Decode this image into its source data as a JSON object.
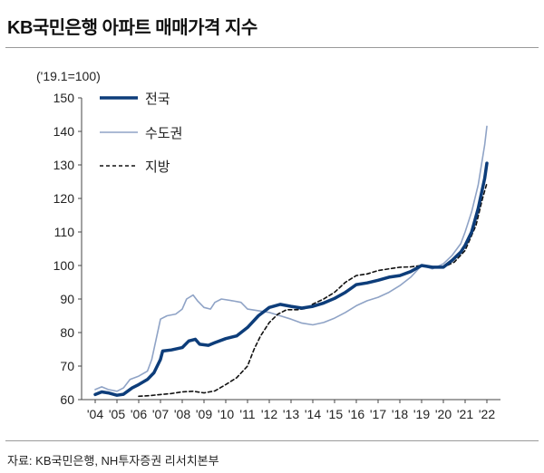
{
  "title": "KB국민은행 아파트 매매가격 지수",
  "source": "자료: KB국민은행, NH투자증권 리서치본부",
  "chart_data": {
    "type": "line",
    "title": "KB국민은행 아파트 매매가격 지수",
    "ylabel": "('19.1=100)",
    "xlabel": "",
    "ylim": [
      60,
      150
    ],
    "yticks": [
      60,
      70,
      80,
      90,
      100,
      110,
      120,
      130,
      140,
      150
    ],
    "xlim": [
      2004,
      2022
    ],
    "xtick_labels": [
      "'04",
      "'05",
      "'06",
      "'07",
      "'08",
      "'09",
      "'10",
      "'11",
      "'12",
      "'13",
      "'14",
      "'15",
      "'16",
      "'17",
      "'18",
      "'19",
      "'20",
      "'21",
      "'22"
    ],
    "grid": false,
    "legend": "top-left",
    "series": [
      {
        "name": "전국",
        "color": "#0d3d7a",
        "style": "solid-thick",
        "points": [
          [
            2004.0,
            61.5
          ],
          [
            2004.3,
            62.3
          ],
          [
            2004.6,
            62.0
          ],
          [
            2005.0,
            61.3
          ],
          [
            2005.3,
            61.6
          ],
          [
            2005.7,
            63.5
          ],
          [
            2006.0,
            64.5
          ],
          [
            2006.4,
            66.0
          ],
          [
            2006.7,
            68.0
          ],
          [
            2007.0,
            72.0
          ],
          [
            2007.1,
            74.5
          ],
          [
            2007.5,
            74.8
          ],
          [
            2008.0,
            75.5
          ],
          [
            2008.3,
            77.5
          ],
          [
            2008.6,
            78.0
          ],
          [
            2008.8,
            76.5
          ],
          [
            2009.2,
            76.2
          ],
          [
            2009.5,
            77.0
          ],
          [
            2010.0,
            78.2
          ],
          [
            2010.5,
            79.0
          ],
          [
            2011.0,
            81.5
          ],
          [
            2011.5,
            85.0
          ],
          [
            2012.0,
            87.5
          ],
          [
            2012.5,
            88.4
          ],
          [
            2013.0,
            87.8
          ],
          [
            2013.5,
            87.3
          ],
          [
            2014.0,
            87.8
          ],
          [
            2014.5,
            88.8
          ],
          [
            2015.0,
            90.2
          ],
          [
            2015.5,
            92.0
          ],
          [
            2016.0,
            94.3
          ],
          [
            2016.5,
            94.8
          ],
          [
            2017.0,
            95.6
          ],
          [
            2017.5,
            96.5
          ],
          [
            2018.0,
            97.0
          ],
          [
            2018.5,
            98.2
          ],
          [
            2019.0,
            100.0
          ],
          [
            2019.5,
            99.5
          ],
          [
            2020.0,
            99.5
          ],
          [
            2020.4,
            101.5
          ],
          [
            2020.8,
            104.0
          ],
          [
            2021.0,
            106.0
          ],
          [
            2021.3,
            110.0
          ],
          [
            2021.6,
            117.0
          ],
          [
            2021.9,
            126.0
          ],
          [
            2022.0,
            130.5
          ]
        ]
      },
      {
        "name": "수도권",
        "color": "#8fa3c6",
        "style": "solid-thin",
        "points": [
          [
            2004.0,
            63.0
          ],
          [
            2004.3,
            63.8
          ],
          [
            2004.6,
            63.0
          ],
          [
            2005.0,
            62.5
          ],
          [
            2005.3,
            63.5
          ],
          [
            2005.6,
            66.0
          ],
          [
            2006.0,
            67.0
          ],
          [
            2006.4,
            68.5
          ],
          [
            2006.6,
            72.0
          ],
          [
            2006.8,
            78.0
          ],
          [
            2007.0,
            84.0
          ],
          [
            2007.3,
            85.0
          ],
          [
            2007.7,
            85.5
          ],
          [
            2008.0,
            87.0
          ],
          [
            2008.2,
            90.0
          ],
          [
            2008.5,
            91.2
          ],
          [
            2008.7,
            89.5
          ],
          [
            2009.0,
            87.5
          ],
          [
            2009.3,
            87.0
          ],
          [
            2009.5,
            89.0
          ],
          [
            2009.8,
            90.0
          ],
          [
            2010.3,
            89.5
          ],
          [
            2010.7,
            89.0
          ],
          [
            2011.0,
            87.0
          ],
          [
            2011.5,
            86.5
          ],
          [
            2012.0,
            86.0
          ],
          [
            2012.5,
            85.0
          ],
          [
            2013.0,
            84.0
          ],
          [
            2013.5,
            82.8
          ],
          [
            2014.0,
            82.3
          ],
          [
            2014.5,
            83.0
          ],
          [
            2015.0,
            84.3
          ],
          [
            2015.5,
            86.0
          ],
          [
            2016.0,
            88.0
          ],
          [
            2016.5,
            89.5
          ],
          [
            2017.0,
            90.5
          ],
          [
            2017.5,
            92.0
          ],
          [
            2018.0,
            94.0
          ],
          [
            2018.5,
            96.5
          ],
          [
            2019.0,
            100.0
          ],
          [
            2019.5,
            99.0
          ],
          [
            2020.0,
            100.5
          ],
          [
            2020.4,
            103.0
          ],
          [
            2020.8,
            106.5
          ],
          [
            2021.0,
            110.0
          ],
          [
            2021.3,
            116.0
          ],
          [
            2021.6,
            124.0
          ],
          [
            2021.9,
            136.0
          ],
          [
            2022.0,
            141.5
          ]
        ]
      },
      {
        "name": "지방",
        "color": "#111111",
        "style": "dashed",
        "points": [
          [
            2006.0,
            61.0
          ],
          [
            2006.5,
            61.2
          ],
          [
            2007.0,
            61.5
          ],
          [
            2007.5,
            61.8
          ],
          [
            2008.0,
            62.3
          ],
          [
            2008.5,
            62.5
          ],
          [
            2009.0,
            62.0
          ],
          [
            2009.5,
            62.6
          ],
          [
            2010.0,
            64.5
          ],
          [
            2010.5,
            66.5
          ],
          [
            2011.0,
            70.0
          ],
          [
            2011.3,
            75.0
          ],
          [
            2011.6,
            79.0
          ],
          [
            2012.0,
            83.0
          ],
          [
            2012.4,
            85.5
          ],
          [
            2012.8,
            86.8
          ],
          [
            2013.3,
            86.8
          ],
          [
            2013.7,
            87.2
          ],
          [
            2014.0,
            88.5
          ],
          [
            2014.5,
            90.0
          ],
          [
            2015.0,
            92.0
          ],
          [
            2015.5,
            95.0
          ],
          [
            2016.0,
            97.0
          ],
          [
            2016.5,
            97.5
          ],
          [
            2017.0,
            98.5
          ],
          [
            2017.5,
            99.0
          ],
          [
            2018.0,
            99.5
          ],
          [
            2018.5,
            99.6
          ],
          [
            2019.0,
            100.0
          ],
          [
            2019.5,
            99.6
          ],
          [
            2020.0,
            99.5
          ],
          [
            2020.5,
            101.0
          ],
          [
            2021.0,
            104.5
          ],
          [
            2021.5,
            112.0
          ],
          [
            2021.8,
            120.0
          ],
          [
            2022.0,
            124.5
          ]
        ]
      }
    ]
  }
}
